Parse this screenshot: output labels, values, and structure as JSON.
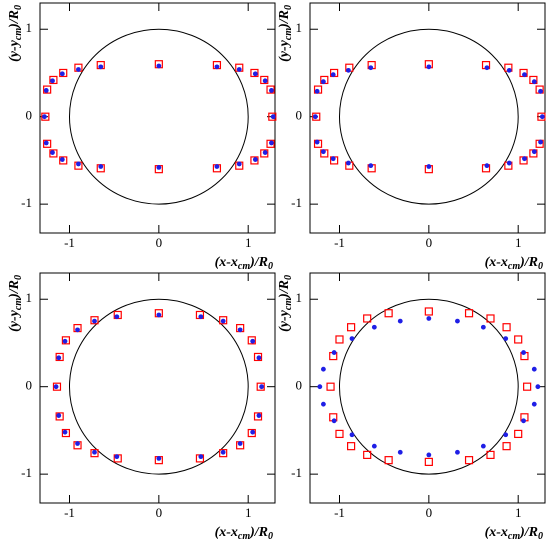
{
  "chart_data": [
    {
      "type": "scatter",
      "xlim": [
        -1.33,
        1.3
      ],
      "ylim": [
        -1.33,
        1.3
      ],
      "xticks": [
        -1,
        0,
        1
      ],
      "yticks": [
        -1,
        0,
        1
      ],
      "xlabel": [
        "(x-x",
        "cm",
        ")/R",
        "0"
      ],
      "ylabel": [
        "(y-y",
        "cm",
        ")/R",
        "0"
      ],
      "circle_radius": 1,
      "circle_color": "#000000",
      "series": [
        {
          "marker": "square",
          "color": "#ff0000",
          "x": [
            1.27,
            1.25,
            1.18,
            1.07,
            0.9,
            0.65,
            0,
            -0.65,
            -0.9,
            -1.07,
            -1.18,
            -1.25,
            -1.27,
            -1.25,
            -1.18,
            -1.07,
            -0.9,
            -0.65,
            0,
            0.65,
            0.9,
            1.07,
            1.18,
            1.25
          ],
          "y": [
            0,
            0.31,
            0.42,
            0.5,
            0.56,
            0.59,
            0.6,
            0.59,
            0.56,
            0.5,
            0.42,
            0.31,
            0,
            -0.31,
            -0.42,
            -0.5,
            -0.56,
            -0.59,
            -0.6,
            -0.59,
            -0.56,
            -0.5,
            -0.42,
            -0.31
          ]
        },
        {
          "marker": "dot",
          "color": "#1f1fe6",
          "x": [
            1.28,
            1.26,
            1.19,
            1.08,
            0.9,
            0.65,
            0,
            -0.65,
            -0.9,
            -1.08,
            -1.19,
            -1.26,
            -1.28,
            -1.26,
            -1.19,
            -1.08,
            -0.9,
            -0.65,
            0,
            0.65,
            0.9,
            1.08,
            1.19,
            1.26
          ],
          "y": [
            0,
            0.3,
            0.41,
            0.49,
            0.54,
            0.57,
            0.58,
            0.57,
            0.54,
            0.49,
            0.41,
            0.3,
            0,
            -0.3,
            -0.41,
            -0.49,
            -0.54,
            -0.57,
            -0.58,
            -0.57,
            -0.54,
            -0.49,
            -0.41,
            -0.3
          ]
        }
      ]
    },
    {
      "type": "scatter",
      "xlim": [
        -1.33,
        1.3
      ],
      "ylim": [
        -1.33,
        1.3
      ],
      "xticks": [
        -1,
        0,
        1
      ],
      "yticks": [
        -1,
        0,
        1
      ],
      "xlabel": [
        "(x-x",
        "cm",
        ")/R",
        "0"
      ],
      "ylabel": [
        "(y-y",
        "cm",
        ")/R",
        "0"
      ],
      "circle_radius": 1,
      "circle_color": "#000000",
      "series": [
        {
          "marker": "square",
          "color": "#ff0000",
          "x": [
            1.26,
            1.24,
            1.17,
            1.06,
            0.89,
            0.64,
            0,
            -0.64,
            -0.89,
            -1.06,
            -1.17,
            -1.24,
            -1.26,
            -1.24,
            -1.17,
            -1.06,
            -0.89,
            -0.64,
            0,
            0.64,
            0.89,
            1.06,
            1.17,
            1.24
          ],
          "y": [
            0,
            0.31,
            0.42,
            0.5,
            0.56,
            0.59,
            0.6,
            0.59,
            0.56,
            0.5,
            0.42,
            0.31,
            0,
            -0.31,
            -0.42,
            -0.5,
            -0.56,
            -0.59,
            -0.6,
            -0.59,
            -0.56,
            -0.5,
            -0.42,
            -0.31
          ]
        },
        {
          "marker": "dot",
          "color": "#1f1fe6",
          "x": [
            1.27,
            1.25,
            1.18,
            1.07,
            0.9,
            0.65,
            0,
            -0.65,
            -0.9,
            -1.07,
            -1.18,
            -1.25,
            -1.27,
            -1.25,
            -1.18,
            -1.07,
            -0.9,
            -0.65,
            0,
            0.65,
            0.9,
            1.07,
            1.18,
            1.25
          ],
          "y": [
            0,
            0.29,
            0.4,
            0.48,
            0.53,
            0.56,
            0.57,
            0.56,
            0.53,
            0.48,
            0.4,
            0.29,
            0,
            -0.29,
            -0.4,
            -0.48,
            -0.53,
            -0.56,
            -0.57,
            -0.56,
            -0.53,
            -0.48,
            -0.4,
            -0.29
          ]
        }
      ]
    },
    {
      "type": "scatter",
      "xlim": [
        -1.33,
        1.3
      ],
      "ylim": [
        -1.33,
        1.3
      ],
      "xticks": [
        -1,
        0,
        1
      ],
      "yticks": [
        -1,
        0,
        1
      ],
      "xlabel": [
        "(x-x",
        "cm",
        ")/R",
        "0"
      ],
      "ylabel": [
        "(y-y",
        "cm",
        ")/R",
        "0"
      ],
      "circle_radius": 1,
      "circle_color": "#000000",
      "series": [
        {
          "marker": "square",
          "color": "#ff0000",
          "x": [
            1.14,
            1.11,
            1.04,
            0.91,
            0.72,
            0.46,
            0,
            -0.46,
            -0.72,
            -0.91,
            -1.04,
            -1.11,
            -1.14,
            -1.11,
            -1.04,
            -0.91,
            -0.72,
            -0.46,
            0,
            0.46,
            0.72,
            0.91,
            1.04,
            1.11
          ],
          "y": [
            0,
            0.34,
            0.53,
            0.67,
            0.76,
            0.82,
            0.84,
            0.82,
            0.76,
            0.67,
            0.53,
            0.34,
            0,
            -0.34,
            -0.53,
            -0.67,
            -0.76,
            -0.82,
            -0.84,
            -0.82,
            -0.76,
            -0.67,
            -0.53,
            -0.34
          ]
        },
        {
          "marker": "dot",
          "color": "#1f1fe6",
          "x": [
            1.15,
            1.12,
            1.05,
            0.91,
            0.72,
            0.47,
            0,
            -0.47,
            -0.72,
            -0.91,
            -1.05,
            -1.12,
            -1.15,
            -1.12,
            -1.05,
            -0.91,
            -0.72,
            -0.47,
            0,
            0.47,
            0.72,
            0.91,
            1.05,
            1.12
          ],
          "y": [
            0,
            0.33,
            0.52,
            0.65,
            0.75,
            0.8,
            0.82,
            0.8,
            0.75,
            0.65,
            0.52,
            0.33,
            0,
            -0.33,
            -0.52,
            -0.65,
            -0.75,
            -0.8,
            -0.82,
            -0.8,
            -0.75,
            -0.65,
            -0.52,
            -0.33
          ]
        }
      ]
    },
    {
      "type": "scatter",
      "xlim": [
        -1.33,
        1.3
      ],
      "ylim": [
        -1.33,
        1.3
      ],
      "xticks": [
        -1,
        0,
        1
      ],
      "yticks": [
        -1,
        0,
        1
      ],
      "xlabel": [
        "(x-x",
        "cm",
        ")/R",
        "0"
      ],
      "ylabel": [
        "(y-y",
        "cm",
        ")/R",
        "0"
      ],
      "circle_radius": 1,
      "circle_color": "#000000",
      "series": [
        {
          "marker": "square",
          "color": "#ff0000",
          "x": [
            1.1,
            1.07,
            1,
            0.87,
            0.69,
            0.45,
            0,
            -0.45,
            -0.69,
            -0.87,
            -1,
            -1.07,
            -1.1,
            -1.07,
            -1,
            -0.87,
            -0.69,
            -0.45,
            0,
            0.45,
            0.69,
            0.87,
            1,
            1.07
          ],
          "y": [
            0,
            0.35,
            0.54,
            0.68,
            0.78,
            0.84,
            0.86,
            0.84,
            0.78,
            0.68,
            0.54,
            0.35,
            0,
            -0.35,
            -0.54,
            -0.68,
            -0.78,
            -0.84,
            -0.86,
            -0.84,
            -0.78,
            -0.68,
            -0.54,
            -0.35
          ]
        },
        {
          "marker": "dot",
          "color": "#1f1fe6",
          "x": [
            1.22,
            1.18,
            1.06,
            0.86,
            0.61,
            0.32,
            0,
            -0.32,
            -0.61,
            -0.86,
            -1.06,
            -1.18,
            -1.22,
            -1.18,
            -1.06,
            -0.86,
            -0.61,
            -0.32,
            0,
            0.32,
            0.61,
            0.86,
            1.06,
            1.18
          ],
          "y": [
            0,
            0.2,
            0.39,
            0.55,
            0.68,
            0.75,
            0.78,
            0.75,
            0.68,
            0.55,
            0.39,
            0.2,
            0,
            -0.2,
            -0.39,
            -0.55,
            -0.68,
            -0.75,
            -0.78,
            -0.75,
            -0.68,
            -0.55,
            -0.39,
            -0.2
          ]
        }
      ]
    }
  ]
}
